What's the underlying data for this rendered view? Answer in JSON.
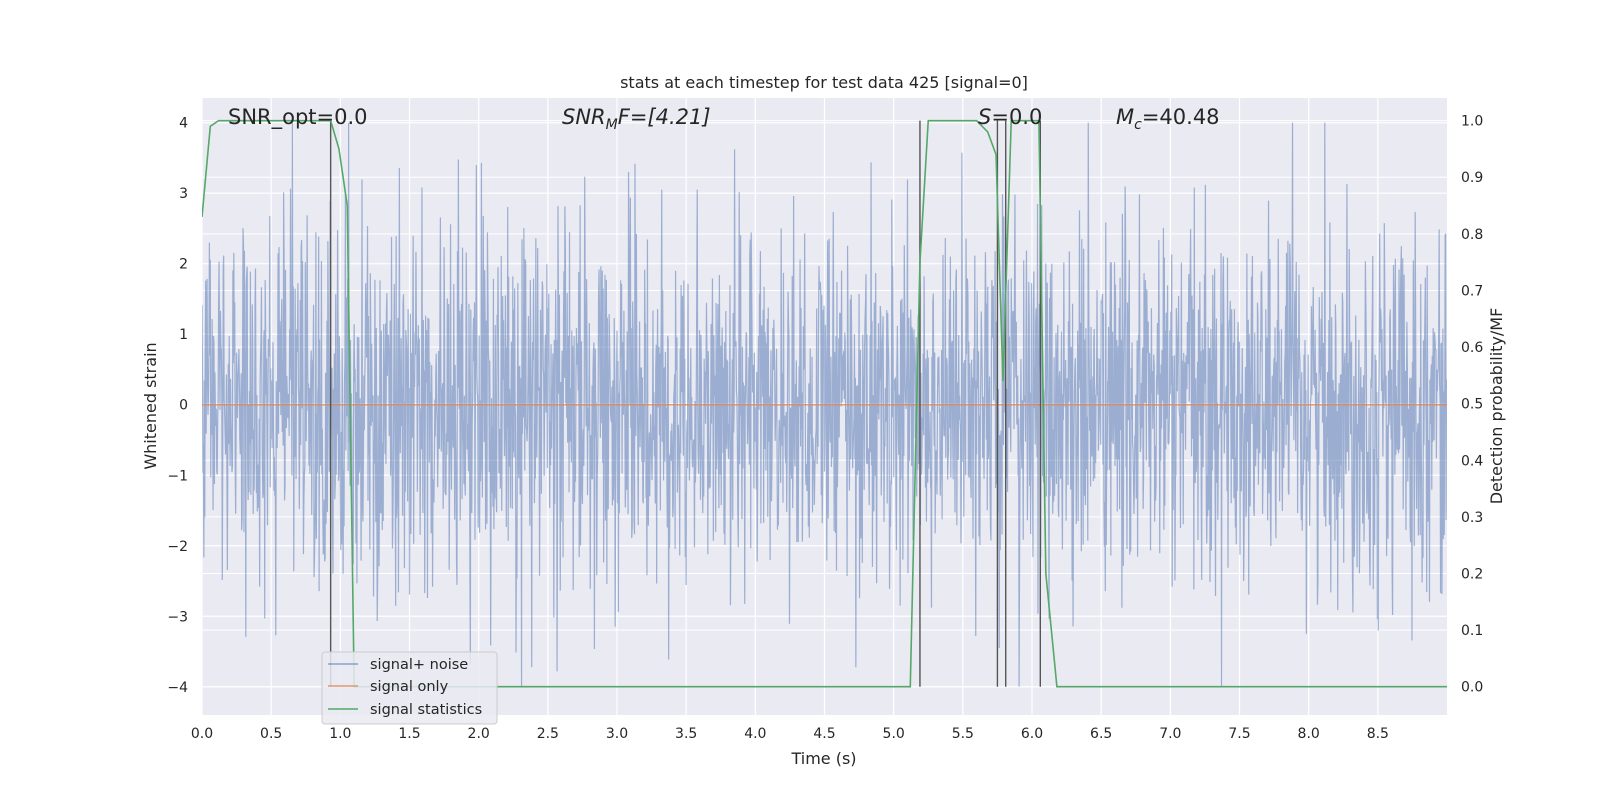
{
  "chart_data": {
    "type": "line",
    "title": "stats at each timestep for test data 425 [signal=0]",
    "xlabel": "Time (s)",
    "ylabel": "Whitened strain",
    "y2label": "Detection probability/MF",
    "xlim": [
      0.0,
      9.0
    ],
    "ylim": [
      -4.4,
      4.35
    ],
    "y2lim": [
      -0.05,
      1.04
    ],
    "x_ticks": [
      0.0,
      0.5,
      1.0,
      1.5,
      2.0,
      2.5,
      3.0,
      3.5,
      4.0,
      4.5,
      5.0,
      5.5,
      6.0,
      6.5,
      7.0,
      7.5,
      8.0,
      8.5
    ],
    "x_tick_labels": [
      "0.0",
      "0.5",
      "1.0",
      "1.5",
      "2.0",
      "2.5",
      "3.0",
      "3.5",
      "4.0",
      "4.5",
      "5.0",
      "5.5",
      "6.0",
      "6.5",
      "7.0",
      "7.5",
      "8.0",
      "8.5"
    ],
    "y_ticks": [
      -4,
      -3,
      -2,
      -1,
      0,
      1,
      2,
      3,
      4
    ],
    "y_tick_labels": [
      "−4",
      "−3",
      "−2",
      "−1",
      "0",
      "1",
      "2",
      "3",
      "4"
    ],
    "y2_ticks": [
      0.0,
      0.1,
      0.2,
      0.3,
      0.4,
      0.5,
      0.6,
      0.7,
      0.8,
      0.9,
      1.0
    ],
    "y2_tick_labels": [
      "0.0",
      "0.1",
      "0.2",
      "0.3",
      "0.4",
      "0.5",
      "0.6",
      "0.7",
      "0.8",
      "0.9",
      "1.0"
    ],
    "grid": true,
    "legend_position": "lower-left",
    "annotations": {
      "snr_opt": "SNR_opt=0.0",
      "snr_mf_sym": "SNR",
      "snr_mf_sub": "M",
      "snr_mf_rest": "F=[4.21]",
      "s_sym": "S",
      "s_rest": "=0.0",
      "mc_sym": "M",
      "mc_sub": "c",
      "mc_rest": "=40.48"
    },
    "series": [
      {
        "name": "signal+ noise",
        "color": "#4c72b0",
        "axis": "left",
        "kind": "noise",
        "sample_rate": 300,
        "duration": 9.0,
        "peak_abs": 4.0
      },
      {
        "name": "signal only",
        "color": "#dd8452",
        "axis": "left",
        "x": [
          0.0,
          9.0
        ],
        "y": [
          0.0,
          0.0
        ]
      },
      {
        "name": "signal statistics",
        "color": "#55a868",
        "axis": "right",
        "x": [
          0.0,
          0.06,
          0.12,
          0.2,
          0.5,
          0.93,
          0.99,
          1.05,
          1.1,
          1.15,
          5.12,
          5.19,
          5.25,
          5.6,
          5.68,
          5.74,
          5.79,
          5.85,
          5.92,
          6.05,
          6.1,
          6.18,
          9.0
        ],
        "y": [
          0.83,
          0.99,
          1.0,
          1.0,
          1.0,
          1.0,
          0.95,
          0.85,
          0.0,
          0.0,
          0.0,
          0.75,
          1.0,
          1.0,
          0.98,
          0.94,
          0.54,
          1.0,
          1.0,
          1.0,
          0.2,
          0.0,
          0.0
        ]
      }
    ],
    "vertical_markers": {
      "color": "#555555",
      "x": [
        0.93,
        5.19,
        5.75,
        5.81,
        6.06
      ]
    }
  }
}
